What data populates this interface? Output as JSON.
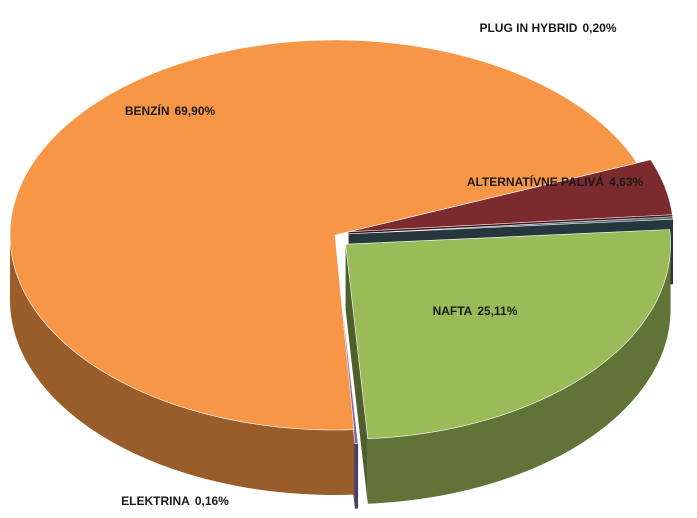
{
  "chart_data": {
    "type": "pie",
    "categories": [
      "ALTERNATÍVNE PALIVÁ",
      "PLUG IN  HYBRID",
      "NAFTA",
      "ELEKTRINA",
      "BENZÍN"
    ],
    "values": [
      4.63,
      0.2,
      25.11,
      0.16,
      69.9
    ],
    "value_labels": [
      "4,63%",
      "0,20%",
      "25,11%",
      "0,16%",
      "69,90%"
    ],
    "colors": [
      "#7b2a2e",
      "#4d6b78",
      "#9bbb59",
      "#8064a2",
      "#f79646"
    ]
  }
}
